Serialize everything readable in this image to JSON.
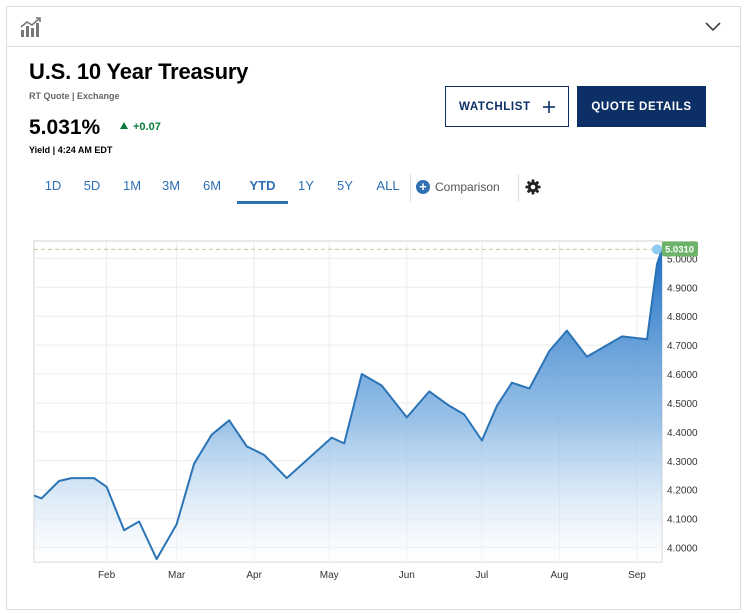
{
  "header": {
    "title": "U.S. 10 Year Treasury",
    "subtitle": "RT Quote | Exchange",
    "price": "5.031%",
    "change": "+0.07",
    "meta": "Yield | 4:24 AM EDT"
  },
  "buttons": {
    "watchlist": "WATCHLIST",
    "quote_details": "QUOTE DETAILS"
  },
  "ranges": [
    "1D",
    "5D",
    "1M",
    "3M",
    "6M",
    "YTD",
    "1Y",
    "5Y",
    "ALL"
  ],
  "active_range": "YTD",
  "comparison_label": "Comparison",
  "icons": {
    "logo": "chart-bars-icon",
    "collapse": "chevron-down-icon",
    "watchlist_add": "plus-icon",
    "comparison_add": "plus-circle-icon",
    "settings": "gear-icon"
  },
  "colors": {
    "navy": "#0c2f66",
    "link_blue": "#2f6fb2",
    "up_green": "#0a7b3e",
    "line": "#2b74b6",
    "last_label_bg": "#6db46a",
    "last_dot": "#8fcaf0"
  },
  "chart_data": {
    "type": "area",
    "title": "",
    "xlabel": "",
    "ylabel": "",
    "ylim": [
      3.95,
      5.06
    ],
    "y_ticks": [
      "4.0000",
      "4.1000",
      "4.2000",
      "4.3000",
      "4.4000",
      "4.5000",
      "4.6000",
      "4.7000",
      "4.8000",
      "4.9000",
      "5.0000"
    ],
    "x_ticks": [
      "Feb",
      "Mar",
      "Apr",
      "May",
      "Jun",
      "Jul",
      "Aug",
      "Sep"
    ],
    "x_tick_dates": [
      "2023-02-01",
      "2023-03-01",
      "2023-04-01",
      "2023-05-01",
      "2023-06-01",
      "2023-07-01",
      "2023-08-01",
      "2023-09-01"
    ],
    "xlim": [
      "2023-01-03",
      "2023-09-11"
    ],
    "grid": true,
    "last_value_label": "5.0310",
    "reference_line_value": 5.031,
    "series": [
      {
        "x": [
          "2023-01-03",
          "2023-01-06",
          "2023-01-13",
          "2023-01-18",
          "2023-01-21",
          "2023-01-27",
          "2023-02-01",
          "2023-02-08",
          "2023-02-14",
          "2023-02-21",
          "2023-03-01",
          "2023-03-08",
          "2023-03-15",
          "2023-03-22",
          "2023-03-29",
          "2023-04-05",
          "2023-04-14",
          "2023-04-23",
          "2023-05-02",
          "2023-05-07",
          "2023-05-14",
          "2023-05-22",
          "2023-06-01",
          "2023-06-10",
          "2023-06-18",
          "2023-06-24",
          "2023-07-01",
          "2023-07-07",
          "2023-07-13",
          "2023-07-20",
          "2023-07-28",
          "2023-08-04",
          "2023-08-12",
          "2023-08-20",
          "2023-08-26",
          "2023-09-05",
          "2023-09-09",
          "2023-09-11"
        ],
        "values": [
          4.18,
          4.17,
          4.23,
          4.24,
          4.24,
          4.24,
          4.21,
          4.06,
          4.09,
          3.96,
          4.08,
          4.29,
          4.39,
          4.44,
          4.35,
          4.32,
          4.24,
          4.31,
          4.38,
          4.36,
          4.6,
          4.56,
          4.45,
          4.54,
          4.49,
          4.46,
          4.37,
          4.49,
          4.57,
          4.55,
          4.68,
          4.75,
          4.66,
          4.7,
          4.73,
          4.72,
          4.98,
          5.031
        ]
      }
    ]
  }
}
